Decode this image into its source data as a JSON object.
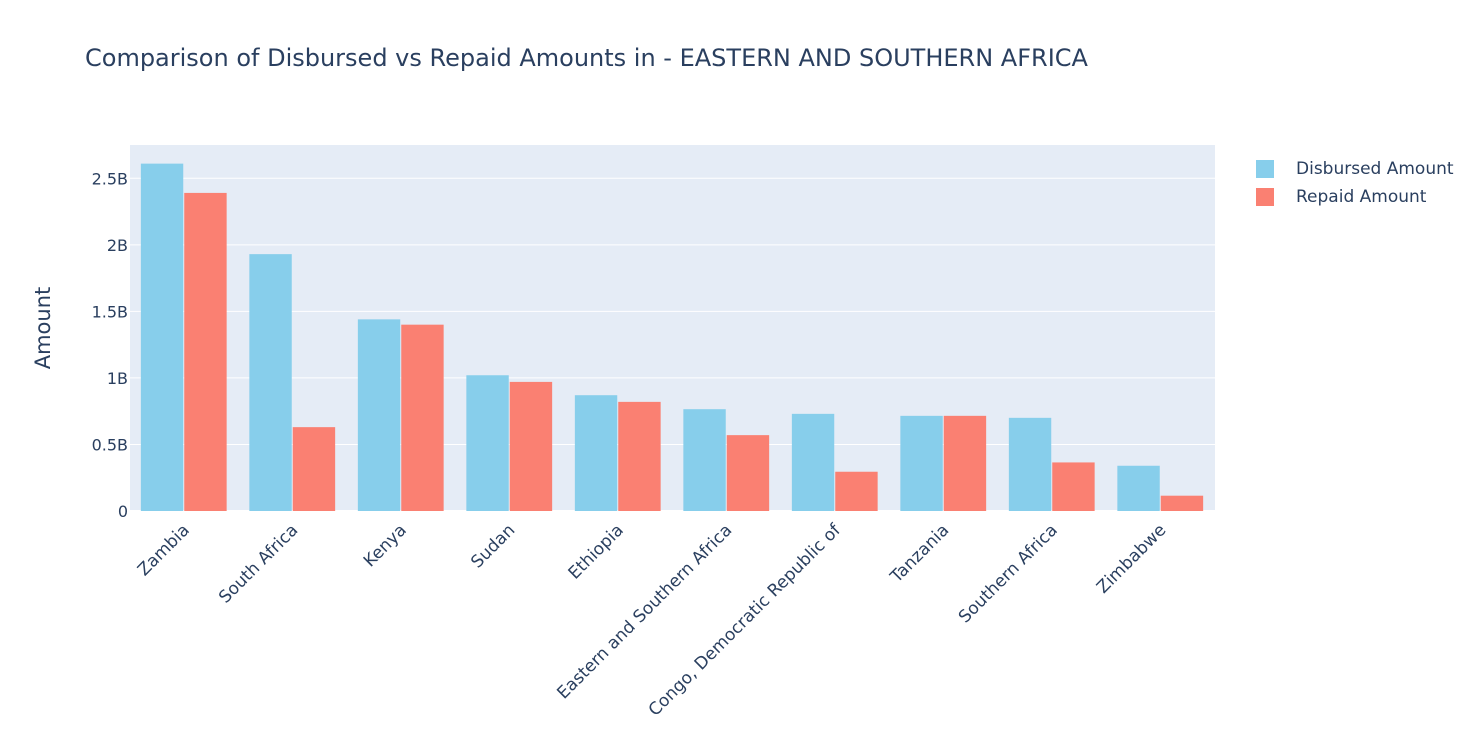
{
  "chart_data": {
    "type": "bar",
    "title": "Comparison of Disbursed vs Repaid Amounts in - EASTERN AND SOUTHERN AFRICA",
    "xlabel": "",
    "ylabel": "Amount",
    "categories": [
      "Zambia",
      "South Africa",
      "Kenya",
      "Sudan",
      "Ethiopia",
      "Eastern and Southern Africa",
      "Congo, Democratic Republic of",
      "Tanzania",
      "Southern Africa",
      "Zimbabwe"
    ],
    "series": [
      {
        "name": "Disbursed Amount",
        "color": "#87ceeb",
        "values": [
          2610000000,
          1930000000,
          1440000000,
          1020000000,
          870000000,
          765000000,
          730000000,
          715000000,
          700000000,
          340000000
        ]
      },
      {
        "name": "Repaid Amount",
        "color": "#fa8072",
        "values": [
          2390000000,
          630000000,
          1400000000,
          970000000,
          820000000,
          570000000,
          295000000,
          715000000,
          365000000,
          115000000
        ]
      }
    ],
    "ylim": [
      0,
      2750000000
    ],
    "yticks": [
      {
        "value": 0,
        "label": "0"
      },
      {
        "value": 500000000,
        "label": "0.5B"
      },
      {
        "value": 1000000000,
        "label": "1B"
      },
      {
        "value": 1500000000,
        "label": "1.5B"
      },
      {
        "value": 2000000000,
        "label": "2B"
      },
      {
        "value": 2500000000,
        "label": "2.5B"
      }
    ],
    "grid": true,
    "legend_position": "top-right",
    "plot_background": "#e5ecf6"
  }
}
